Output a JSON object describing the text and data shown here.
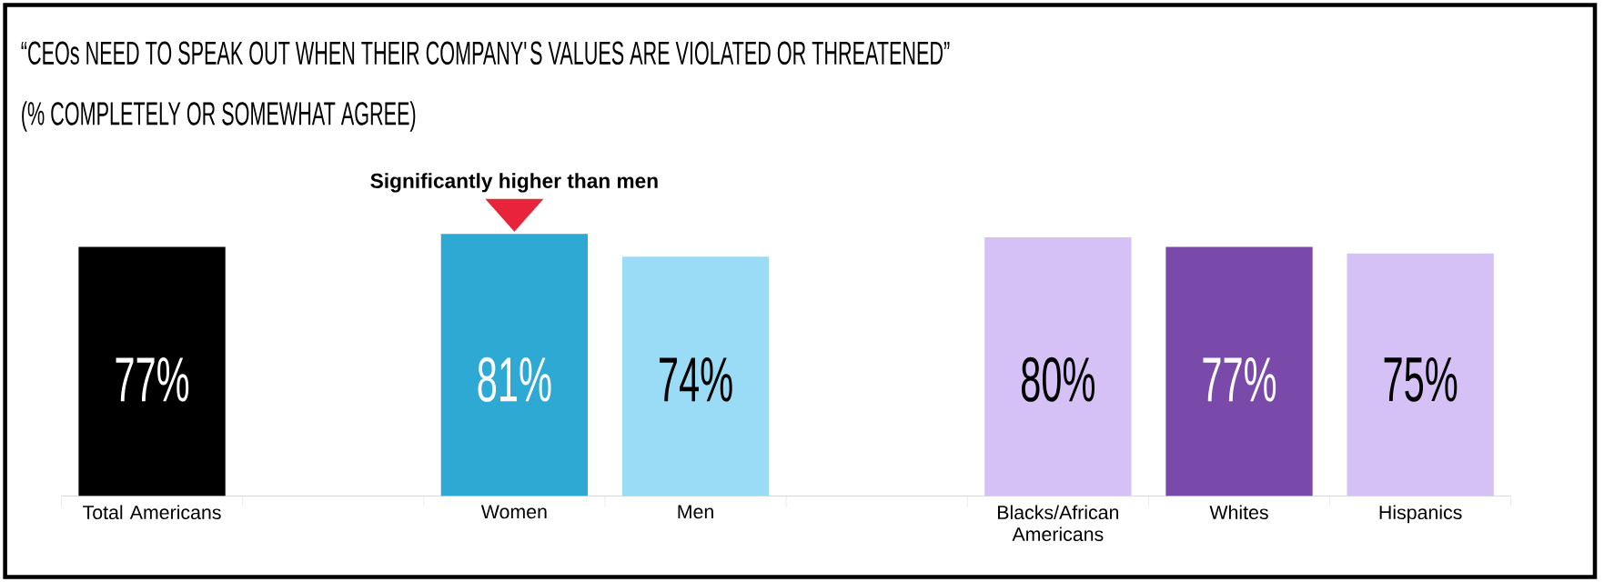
{
  "chart_data": {
    "type": "bar",
    "title": "“CEOs NEED TO SPEAK OUT WHEN THEIR COMPANY'S VALUES ARE VIOLATED OR THREATENED”",
    "subtitle": "(% COMPLETELY OR SOMEWHAT AGREE)",
    "categories": [
      "Total Americans",
      null,
      "Women",
      "Men",
      null,
      "Blacks/African Americans",
      "Whites",
      "Hispanics"
    ],
    "values": [
      77,
      null,
      81,
      74,
      null,
      80,
      77,
      75
    ],
    "colors": [
      "#000000",
      null,
      "#2ea9d3",
      "#9adcf5",
      null,
      "#d5c1f5",
      "#7a4aaa",
      "#d5c1f5"
    ],
    "value_labels": [
      "77%",
      null,
      "81%",
      "74%",
      null,
      "80%",
      "77%",
      "75%"
    ],
    "annotations": [
      {
        "text": "Significantly higher than men",
        "x": "Women",
        "y": 81
      }
    ]
  }
}
